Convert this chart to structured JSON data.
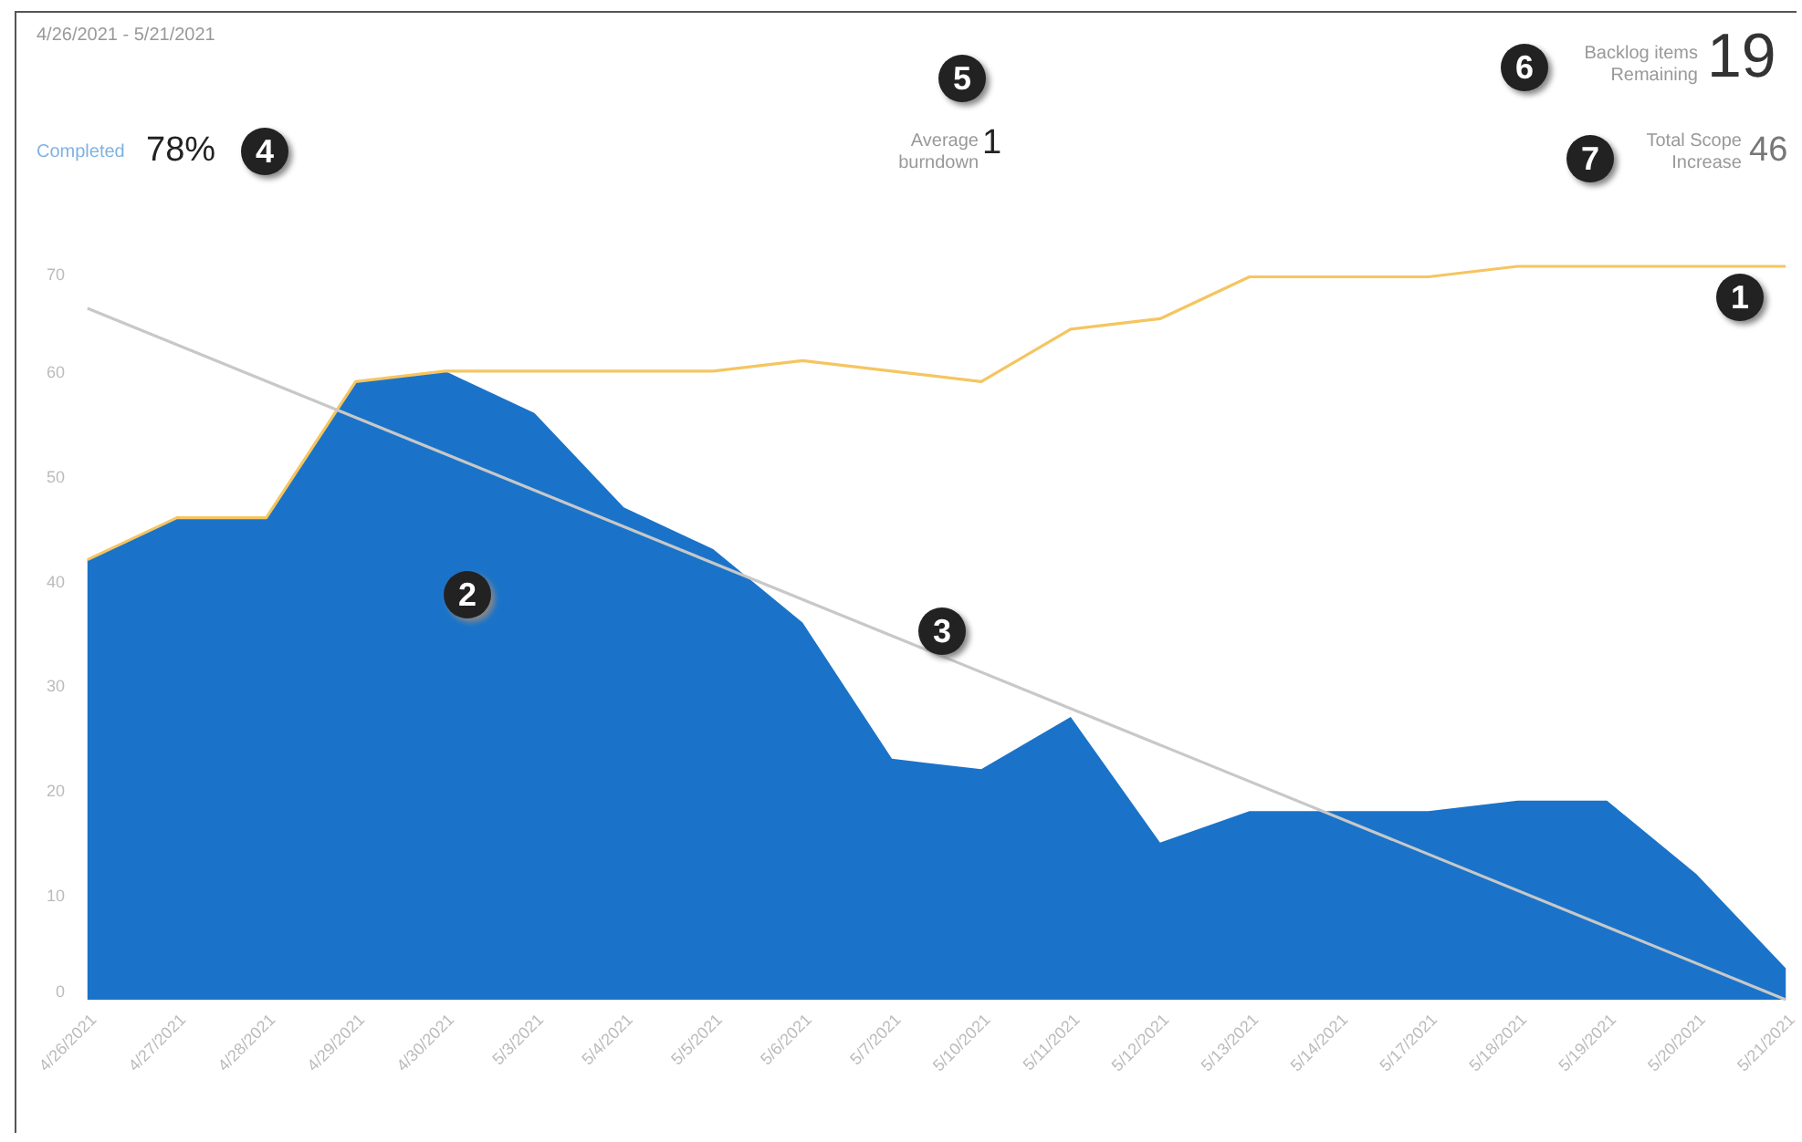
{
  "chart_data": {
    "type": "area",
    "categories": [
      "4/26/2021",
      "4/27/2021",
      "4/28/2021",
      "4/29/2021",
      "4/30/2021",
      "5/3/2021",
      "5/4/2021",
      "5/5/2021",
      "5/6/2021",
      "5/7/2021",
      "5/10/2021",
      "5/11/2021",
      "5/12/2021",
      "5/13/2021",
      "5/14/2021",
      "5/17/2021",
      "5/18/2021",
      "5/19/2021",
      "5/20/2021",
      "5/21/2021"
    ],
    "series": [
      {
        "color": "#1a73c9",
        "values": [
          42,
          46,
          46,
          59,
          60,
          56,
          47,
          43,
          36,
          23,
          22,
          27,
          15,
          18,
          18,
          18,
          19,
          19,
          12,
          3
        ]
      },
      {
        "type": "line",
        "color": "#f5c560",
        "values": [
          42,
          46,
          46,
          59,
          60,
          60,
          60,
          60,
          61,
          60,
          59,
          64,
          65,
          69,
          69,
          69,
          70,
          70,
          70,
          70
        ]
      },
      {
        "type": "line",
        "color": "#c8c8c8",
        "x": [
          "4/26/2021",
          "5/21/2021"
        ],
        "values": [
          66,
          0
        ]
      }
    ],
    "ylim": [
      0,
      70
    ],
    "yticks": [
      0,
      10,
      20,
      30,
      40,
      50,
      60,
      70
    ],
    "grid": false,
    "annotations": [
      "4/26/2021 - 5/21/2021",
      "Completed",
      "78%",
      "4",
      "5",
      "Average burndown",
      "1",
      "6",
      "Backlog items Remaining",
      "19",
      "7",
      "Total Scope Increase",
      "46",
      "1",
      "2",
      "3"
    ]
  }
}
